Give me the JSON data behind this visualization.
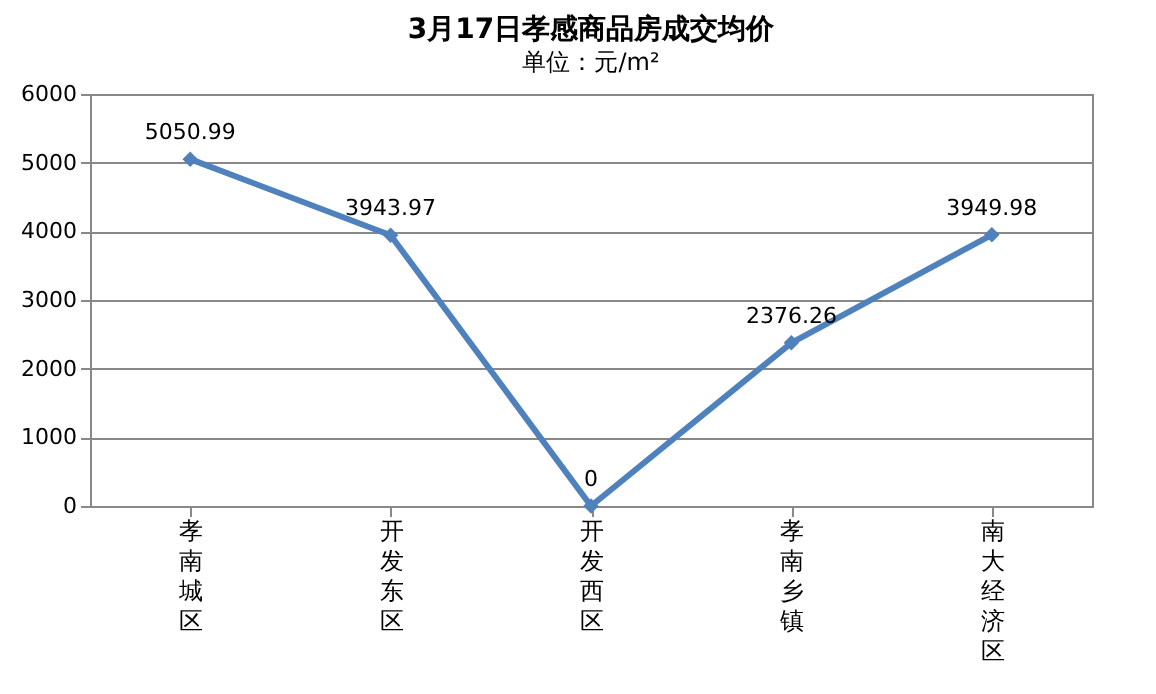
{
  "chart_data": {
    "type": "line",
    "title": "3月17日孝感商品房成交均价",
    "subtitle": "单位：元/m²",
    "categories": [
      "孝南城区",
      "开发东区",
      "开发西区",
      "孝南乡镇",
      "南大经济区"
    ],
    "series": [
      {
        "color": "#4f81bd",
        "values": [
          5050.99,
          3943.97,
          0,
          2376.26,
          3949.98
        ]
      }
    ],
    "ylim": [
      0,
      6000
    ],
    "yticks": [
      0,
      1000,
      2000,
      3000,
      4000,
      5000,
      6000
    ],
    "grid": "y",
    "marker": "diamond",
    "data_labels": true
  }
}
